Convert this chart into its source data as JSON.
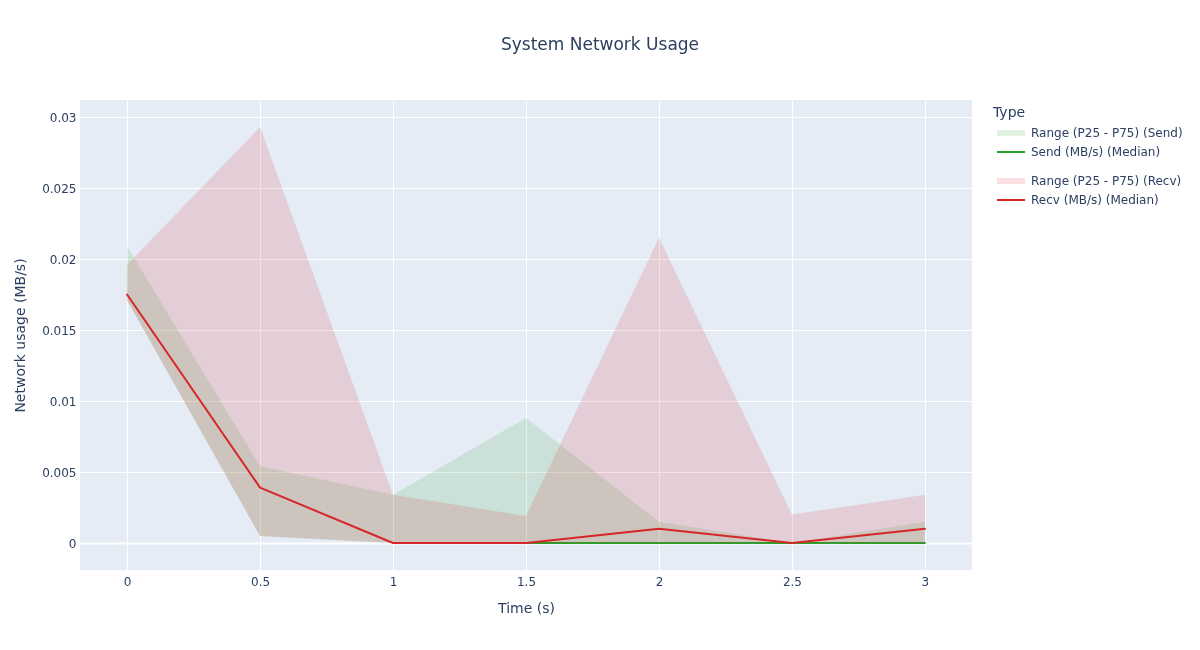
{
  "chart_data": {
    "type": "line",
    "title": "System Network Usage",
    "xlabel": "Time (s)",
    "ylabel": "Network usage (MB/s)",
    "legend_title": "Type",
    "x": [
      0,
      0.5,
      1,
      1.5,
      2,
      2.5,
      3
    ],
    "series": [
      {
        "name": "Range (P25 - P75) (Send)",
        "type": "area",
        "color": "#2ca02c",
        "values": [
          null,
          null,
          null,
          null,
          null,
          null,
          null
        ],
        "lower": [
          0.0171,
          0.0005,
          0,
          0,
          0,
          0,
          0
        ],
        "upper": [
          0.0209,
          0.0054,
          0.0034,
          0.0088,
          0.0015,
          0,
          0.0015
        ]
      },
      {
        "name": "Send (MB/s) (Median)",
        "type": "line",
        "color": "#2ca02c",
        "values": [
          null,
          null,
          null,
          0,
          0,
          0,
          0
        ]
      },
      {
        "name": "Range (P25 - P75) (Recv)",
        "type": "area",
        "color": "#d62728",
        "values": [
          null,
          null,
          null,
          null,
          null,
          null,
          null
        ],
        "lower": [
          0.0171,
          0.0005,
          0,
          0,
          0,
          0,
          0
        ],
        "upper": [
          0.0196,
          0.0293,
          0.0034,
          0.0019,
          0.0215,
          0.002,
          0.0034
        ]
      },
      {
        "name": "Recv (MB/s) (Median)",
        "color": "#d62728",
        "values": [
          0.0175,
          0.0039,
          0,
          0,
          0.001,
          0,
          0.001
        ]
      }
    ],
    "xlim": [
      -0.177,
      3.177
    ],
    "xticks": [
      0,
      0.5,
      1,
      1.5,
      2,
      2.5,
      3
    ],
    "ylim": [
      -0.0019,
      0.0312
    ],
    "yticks": [
      0,
      0.005,
      0.01,
      0.015,
      0.02,
      0.025,
      0.03
    ],
    "grid": true,
    "legend": "right",
    "marker": "none",
    "line_style": "solid"
  }
}
